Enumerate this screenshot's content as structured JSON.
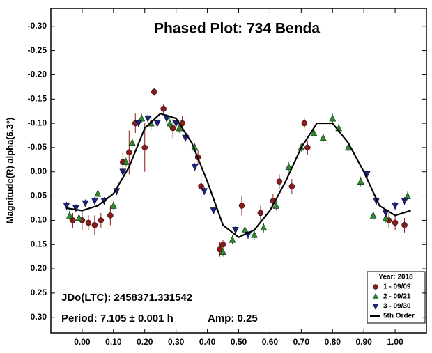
{
  "chart_data": {
    "type": "scatter",
    "title": "Phased Plot: 734 Benda",
    "y_label": "Magnitude(R) alpha(6.3°)",
    "annotations": [
      "JDo(LTC): 2458371.331542",
      "Period: 7.105 ± 0.001 h",
      "Amp: 0.25"
    ],
    "legend_title": "Year: 2018",
    "legend_position": "lower right",
    "xlim": [
      -0.1,
      1.1
    ],
    "ylim": [
      -0.337,
      0.332
    ],
    "y_inverted": true,
    "xticks": [
      {
        "value": 0,
        "label": "0.00"
      },
      {
        "value": 0.1,
        "label": "0.10"
      },
      {
        "value": 0.2,
        "label": "0.20"
      },
      {
        "value": 0.3,
        "label": "0.30"
      },
      {
        "value": 0.4,
        "label": "0.40"
      },
      {
        "value": 0.5,
        "label": "0.50"
      },
      {
        "value": 0.6,
        "label": "0.60"
      },
      {
        "value": 0.7,
        "label": "0.70"
      },
      {
        "value": 0.8,
        "label": "0.80"
      },
      {
        "value": 0.9,
        "label": "0.90"
      },
      {
        "value": 1,
        "label": "1.00"
      }
    ],
    "yticks": [
      {
        "value": -0.3,
        "label": "-0.30"
      },
      {
        "value": -0.25,
        "label": "-0.25"
      },
      {
        "value": -0.2,
        "label": "-0.20"
      },
      {
        "value": -0.15,
        "label": "-0.15"
      },
      {
        "value": -0.1,
        "label": "-0.10"
      },
      {
        "value": -0.05,
        "label": "-0.05"
      },
      {
        "value": 0,
        "label": "0.00"
      },
      {
        "value": 0.05,
        "label": "0.05"
      },
      {
        "value": 0.1,
        "label": "0.10"
      },
      {
        "value": 0.15,
        "label": "0.15"
      },
      {
        "value": 0.2,
        "label": "0.20"
      },
      {
        "value": 0.25,
        "label": "0.25"
      },
      {
        "value": 0.3,
        "label": "0.30"
      }
    ],
    "series": [
      {
        "name": "1 - 09/09",
        "color": "#8b1a1a",
        "marker": "circle",
        "x": [
          -0.03,
          0.0,
          0.02,
          0.04,
          0.06,
          0.09,
          0.13,
          0.15,
          0.17,
          0.2,
          0.23,
          0.26,
          0.29,
          0.32,
          0.37,
          0.38,
          0.44,
          0.45,
          0.51,
          0.57,
          0.61,
          0.63,
          0.67,
          0.71,
          0.72,
          0.98,
          1.0,
          1.03
        ],
        "values": [
          0.1,
          0.1,
          0.105,
          0.11,
          0.1,
          0.09,
          -0.02,
          -0.04,
          -0.1,
          -0.05,
          -0.165,
          -0.13,
          -0.09,
          -0.1,
          -0.03,
          0.03,
          0.16,
          0.15,
          0.07,
          0.085,
          0.06,
          0.02,
          0.03,
          -0.1,
          -0.05,
          0.1,
          0.105,
          0.11
        ],
        "errors": [
          0.015,
          0.02,
          0.015,
          0.02,
          0.015,
          0.02,
          0.02,
          0.045,
          0.02,
          0.05,
          0.008,
          0.01,
          0.02,
          0.015,
          0.015,
          0.025,
          0.015,
          0.01,
          0.02,
          0.015,
          0.015,
          0.015,
          0.015,
          0.01,
          0.015,
          0.015,
          0.015,
          0.015
        ]
      },
      {
        "name": "2 - 09/21",
        "color": "#2e8b2e",
        "marker": "triangle",
        "x": [
          -0.04,
          -0.01,
          0.05,
          0.1,
          0.14,
          0.16,
          0.19,
          0.22,
          0.28,
          0.31,
          0.36,
          0.45,
          0.48,
          0.52,
          0.55,
          0.58,
          0.62,
          0.66,
          0.7,
          0.74,
          0.77,
          0.8,
          0.82,
          0.85,
          0.89,
          0.93,
          0.97,
          1.04
        ],
        "values": [
          0.09,
          0.095,
          0.045,
          0.07,
          -0.02,
          -0.06,
          -0.11,
          -0.1,
          -0.1,
          -0.09,
          -0.05,
          0.165,
          0.14,
          0.12,
          0.13,
          0.115,
          0.07,
          -0.01,
          -0.05,
          -0.08,
          -0.07,
          -0.11,
          -0.09,
          -0.05,
          0.02,
          0.09,
          0.095,
          0.05
        ],
        "errors": [
          0.01,
          0.01,
          0.01,
          0.01,
          0.01,
          0.01,
          0.01,
          0.015,
          0.01,
          0.01,
          0.01,
          0.01,
          0.01,
          0.01,
          0.01,
          0.01,
          0.01,
          0.01,
          0.01,
          0.01,
          0.01,
          0.01,
          0.01,
          0.01,
          0.01,
          0.01,
          0.01,
          0.01
        ]
      },
      {
        "name": "3 - 09/30",
        "color": "#1a237e",
        "marker": "triangle-down",
        "x": [
          -0.05,
          -0.02,
          0.01,
          0.04,
          0.07,
          0.11,
          0.13,
          0.18,
          0.21,
          0.24,
          0.27,
          0.3,
          0.33,
          0.36,
          0.39,
          0.42,
          0.49,
          0.53,
          0.91,
          0.94,
          0.97,
          1.0,
          1.03
        ],
        "values": [
          0.07,
          0.075,
          0.065,
          0.06,
          0.06,
          0.04,
          0.0,
          -0.1,
          -0.11,
          -0.1,
          -0.11,
          -0.1,
          -0.07,
          -0.01,
          0.04,
          0.08,
          0.12,
          0.13,
          0.005,
          0.06,
          0.085,
          0.07,
          0.06
        ],
        "errors": [
          0.008,
          0.008,
          0.008,
          0.008,
          0.008,
          0.008,
          0.008,
          0.008,
          0.008,
          0.008,
          0.008,
          0.008,
          0.008,
          0.008,
          0.008,
          0.008,
          0.008,
          0.008,
          0.008,
          0.008,
          0.008,
          0.008,
          0.008
        ]
      },
      {
        "name": "5th Order",
        "color": "#000000",
        "marker": "line",
        "x": [
          -0.05,
          0.0,
          0.05,
          0.1,
          0.15,
          0.2,
          0.25,
          0.3,
          0.35,
          0.4,
          0.45,
          0.5,
          0.55,
          0.6,
          0.65,
          0.7,
          0.75,
          0.8,
          0.85,
          0.9,
          0.95,
          1.0,
          1.05
        ],
        "values": [
          0.075,
          0.08,
          0.07,
          0.045,
          -0.01,
          -0.09,
          -0.12,
          -0.11,
          -0.06,
          0.02,
          0.11,
          0.135,
          0.12,
          0.08,
          0.02,
          -0.05,
          -0.1,
          -0.1,
          -0.06,
          0.0,
          0.07,
          0.09,
          0.08
        ]
      }
    ]
  }
}
